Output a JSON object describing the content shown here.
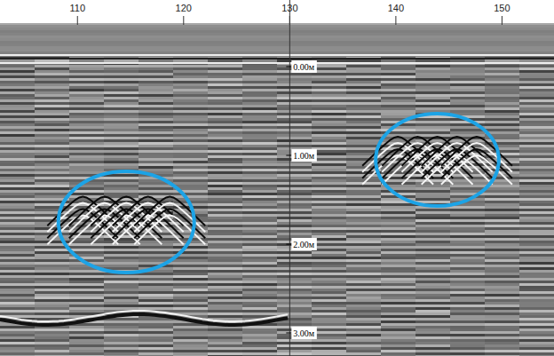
{
  "chart_data": {
    "type": "radargram",
    "xlim": [
      102.7,
      154.9
    ],
    "xticks": [
      110,
      120,
      130,
      140,
      150
    ],
    "ylim": [
      -0.47,
      3.26
    ],
    "yticks": [
      {
        "value": 0,
        "label": "0.00м"
      },
      {
        "value": 1,
        "label": "1.00м"
      },
      {
        "value": 2,
        "label": "2.00м"
      },
      {
        "value": 3,
        "label": "3.00м"
      }
    ],
    "divider": 130,
    "grid": false,
    "color": "#1ca3e6",
    "highlights": [
      {
        "x": 114.6,
        "depth": 1.75,
        "width": 12.8,
        "height": 1.14
      },
      {
        "x": 143.9,
        "depth": 1.05,
        "width": 11.6,
        "height": 1.04
      }
    ]
  }
}
